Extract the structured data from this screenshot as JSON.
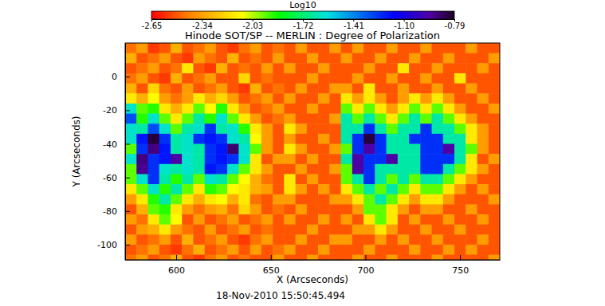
{
  "chart_data": {
    "type": "heatmap",
    "title": "Hinode SOT/SP -- MERLIN : Degree of Polarization",
    "annotation": "18-Nov-2010 15:50:45.494",
    "x_label": "X (Arcseconds)",
    "y_label": "Y (Arcseconds)",
    "xlim": [
      573,
      771
    ],
    "ylim": [
      -109,
      20
    ],
    "xticks": [
      600,
      650,
      700,
      750
    ],
    "yticks": [
      -100,
      -80,
      -60,
      -40,
      -20,
      0
    ],
    "colorbar": {
      "label": "Log10",
      "range": [
        -2.65,
        -0.79
      ],
      "ticks": [
        -2.65,
        -2.34,
        -2.03,
        -1.72,
        -1.41,
        {
          "value": -1.1,
          "label": "-1.10"
        },
        -0.79
      ]
    },
    "x": [
      576,
      582,
      588,
      594,
      600,
      606,
      612,
      618,
      624,
      630,
      636,
      642,
      648,
      654,
      660,
      666,
      672,
      678,
      684,
      690,
      696,
      702,
      708,
      714,
      720,
      726,
      732,
      738,
      744,
      750,
      756,
      762,
      768
    ],
    "y": [
      17,
      11,
      5,
      -1,
      -7,
      -13,
      -19,
      -25,
      -31,
      -37,
      -43,
      -49,
      -55,
      -61,
      -67,
      -73,
      -79,
      -85,
      -91,
      -97,
      -103,
      -109
    ],
    "values": [
      [
        -2.45,
        -2.35,
        -2.55,
        -2.5,
        -2.3,
        -2.5,
        -2.45,
        -2.35,
        -2.5,
        -2.55,
        -2.45,
        -2.35,
        -2.5,
        -2.45,
        -2.5,
        -2.35,
        -2.5,
        -2.5,
        -2.35,
        -2.5,
        -2.35,
        -2.5,
        -2.5,
        -2.35,
        -2.5,
        -2.5,
        -2.35,
        -2.5,
        -2.5,
        -2.5,
        -2.35,
        -2.5,
        -2.5
      ],
      [
        -2.3,
        -2.5,
        -2.45,
        -2.35,
        -2.5,
        -2.55,
        -2.35,
        -2.45,
        -2.5,
        -2.3,
        -2.5,
        -2.45,
        -2.5,
        -2.35,
        -2.5,
        -2.5,
        -2.35,
        -2.5,
        -2.5,
        -2.35,
        -2.5,
        -2.5,
        -2.35,
        -2.5,
        -2.5,
        -2.35,
        -2.5,
        -2.5,
        -2.35,
        -2.5,
        -2.5,
        -2.5,
        -2.35
      ],
      [
        -2.5,
        -2.45,
        -2.35,
        -2.5,
        -2.45,
        -2.15,
        -2.5,
        -2.55,
        -2.3,
        -2.5,
        -2.45,
        -2.5,
        -2.35,
        -2.5,
        -2.35,
        -2.5,
        -2.5,
        -2.35,
        -2.5,
        -2.5,
        -2.5,
        -2.35,
        -2.5,
        -2.5,
        -2.15,
        -2.5,
        -2.5,
        -2.35,
        -2.5,
        -2.5,
        -2.5,
        -2.35,
        -2.5
      ],
      [
        -2.45,
        -2.35,
        -2.5,
        -2.55,
        -2.3,
        -2.5,
        -2.45,
        -2.35,
        -2.5,
        -2.5,
        -2.2,
        -2.5,
        -2.45,
        -2.5,
        -2.5,
        -2.5,
        -2.35,
        -2.5,
        -2.5,
        -2.5,
        -2.35,
        -2.5,
        -2.5,
        -2.35,
        -2.5,
        -2.5,
        -2.35,
        -2.5,
        -2.5,
        -2.15,
        -2.5,
        -2.5,
        -2.5
      ],
      [
        -2.3,
        -2.5,
        -2.2,
        -2.45,
        -2.5,
        -2.35,
        -2.5,
        -2.45,
        -2.35,
        -2.5,
        -2.55,
        -2.3,
        -2.5,
        -2.45,
        -2.5,
        -2.35,
        -2.5,
        -2.5,
        -2.35,
        -2.35,
        -2.5,
        -2.15,
        -2.5,
        -2.5,
        -2.35,
        -2.5,
        -2.5,
        -2.35,
        -2.5,
        -2.5,
        -2.35,
        -2.5,
        -2.5
      ],
      [
        -2.15,
        -2.3,
        -2.1,
        -2.35,
        -2.45,
        -2.35,
        -2.15,
        -2.3,
        -2.2,
        -2.35,
        -2.5,
        -2.45,
        -2.35,
        -2.5,
        -2.35,
        -2.5,
        -2.5,
        -2.35,
        -2.5,
        -2.15,
        -2.35,
        -2.15,
        -2.35,
        -2.5,
        -2.35,
        -2.15,
        -2.35,
        -2.15,
        -2.35,
        -2.5,
        -2.5,
        -2.35,
        -2.5
      ],
      [
        -1.6,
        -1.95,
        -1.9,
        -2.15,
        -2.3,
        -2.15,
        -1.95,
        -2.1,
        -1.9,
        -2.15,
        -2.35,
        -2.5,
        -2.45,
        -2.35,
        -2.5,
        -2.5,
        -2.35,
        -2.5,
        -2.5,
        -1.95,
        -2.15,
        -1.95,
        -2.15,
        -2.35,
        -2.15,
        -1.95,
        -2.15,
        -1.95,
        -2.15,
        -2.35,
        -2.5,
        -2.5,
        -2.35
      ],
      [
        -1.3,
        -1.9,
        -1.6,
        -1.95,
        -2.15,
        -1.95,
        -1.65,
        -1.9,
        -1.6,
        -1.95,
        -2.15,
        -2.35,
        -2.5,
        -2.45,
        -2.35,
        -2.5,
        -2.5,
        -2.5,
        -2.35,
        -1.65,
        -1.95,
        -1.65,
        -1.95,
        -2.15,
        -1.95,
        -1.65,
        -1.95,
        -1.65,
        -1.95,
        -2.15,
        -2.35,
        -2.5,
        -2.5
      ],
      [
        -1.6,
        -1.65,
        -1.3,
        -1.6,
        -1.95,
        -1.65,
        -1.6,
        -1.25,
        -1.65,
        -1.6,
        -1.9,
        -2.15,
        -2.35,
        -2.5,
        -2.15,
        -2.35,
        -2.5,
        -2.5,
        -2.5,
        -1.65,
        -1.65,
        -1.25,
        -1.65,
        -1.95,
        -1.65,
        -1.65,
        -1.25,
        -1.65,
        -1.65,
        -1.95,
        -2.15,
        -2.35,
        -2.5
      ],
      [
        -1.6,
        -1.2,
        -0.82,
        -1.25,
        -1.65,
        -1.6,
        -1.25,
        -1.2,
        -1.25,
        -1.6,
        -1.65,
        -2.1,
        -2.35,
        -2.5,
        -2.35,
        -2.5,
        -2.5,
        -2.35,
        -2.5,
        -1.65,
        -1.25,
        -0.82,
        -1.25,
        -1.65,
        -1.65,
        -1.25,
        -1.25,
        -1.25,
        -1.65,
        -1.65,
        -2.15,
        -2.35,
        -2.5
      ],
      [
        -1.95,
        -1.25,
        -0.9,
        -1.2,
        -1.65,
        -1.6,
        -1.65,
        -1.25,
        -1.2,
        -0.88,
        -1.6,
        -1.95,
        -2.35,
        -2.5,
        -2.15,
        -2.35,
        -2.5,
        -2.5,
        -2.35,
        -1.95,
        -1.25,
        -0.95,
        -1.25,
        -1.65,
        -1.65,
        -1.65,
        -1.25,
        -1.25,
        -0.95,
        -1.65,
        -1.95,
        -2.35,
        -2.5
      ],
      [
        -1.6,
        -0.9,
        -1.25,
        -1.2,
        -0.95,
        -1.6,
        -1.65,
        -1.25,
        -1.2,
        -1.25,
        -1.6,
        -2.15,
        -2.5,
        -2.35,
        -2.35,
        -2.5,
        -2.35,
        -2.5,
        -2.5,
        -1.65,
        -0.95,
        -1.25,
        -1.25,
        -0.95,
        -1.65,
        -1.65,
        -1.25,
        -1.25,
        -1.25,
        -1.65,
        -2.15,
        -2.5,
        -2.35
      ],
      [
        -1.95,
        -0.92,
        -1.25,
        -1.6,
        -1.65,
        -1.6,
        -1.65,
        -1.2,
        -1.25,
        -1.6,
        -1.95,
        -2.15,
        -2.35,
        -2.5,
        -2.5,
        -2.35,
        -2.5,
        -2.5,
        -2.35,
        -1.95,
        -0.95,
        -1.25,
        -1.65,
        -1.65,
        -1.65,
        -1.65,
        -1.25,
        -1.25,
        -1.65,
        -1.95,
        -2.15,
        -2.35,
        -2.5
      ],
      [
        -1.95,
        -1.6,
        -1.25,
        -1.65,
        -1.9,
        -1.65,
        -1.95,
        -1.6,
        -1.65,
        -1.95,
        -2.1,
        -2.3,
        -2.45,
        -2.5,
        -2.15,
        -2.5,
        -2.35,
        -2.5,
        -2.5,
        -1.95,
        -1.65,
        -1.25,
        -1.65,
        -1.95,
        -1.65,
        -1.95,
        -1.65,
        -1.65,
        -1.95,
        -2.15,
        -2.35,
        -2.5,
        -2.5
      ],
      [
        -2.15,
        -1.95,
        -1.6,
        -1.9,
        -1.65,
        -1.95,
        -2.15,
        -1.9,
        -1.95,
        -2.1,
        -2.15,
        -2.3,
        -2.35,
        -2.5,
        -2.15,
        -2.35,
        -2.5,
        -2.35,
        -2.5,
        -2.15,
        -1.95,
        -1.65,
        -1.95,
        -1.65,
        -1.95,
        -2.15,
        -1.95,
        -1.95,
        -2.15,
        -2.35,
        -2.5,
        -2.35,
        -2.5
      ],
      [
        -2.35,
        -2.15,
        -1.9,
        -1.65,
        -1.95,
        -2.15,
        -2.3,
        -2.15,
        -2.1,
        -2.3,
        -2.15,
        -2.45,
        -2.5,
        -2.35,
        -2.35,
        -2.5,
        -2.5,
        -2.5,
        -2.35,
        -2.35,
        -2.15,
        -1.95,
        -1.65,
        -1.95,
        -2.15,
        -2.35,
        -2.15,
        -2.15,
        -2.35,
        -2.5,
        -2.5,
        -2.5,
        -2.35
      ],
      [
        -2.5,
        -2.3,
        -1.95,
        -1.9,
        -2.15,
        -2.35,
        -2.45,
        -2.35,
        -2.3,
        -2.45,
        -2.2,
        -2.35,
        -2.5,
        -2.45,
        -2.5,
        -2.35,
        -2.5,
        -2.5,
        -2.5,
        -2.5,
        -2.35,
        -1.95,
        -1.95,
        -2.15,
        -2.35,
        -2.5,
        -2.35,
        -2.35,
        -2.5,
        -2.5,
        -2.35,
        -2.5,
        -2.5
      ],
      [
        -2.35,
        -2.45,
        -2.15,
        -1.95,
        -2.1,
        -2.5,
        -2.35,
        -2.5,
        -2.45,
        -2.35,
        -2.5,
        -2.45,
        -2.35,
        -2.5,
        -2.35,
        -2.5,
        -2.5,
        -2.35,
        -2.5,
        -2.35,
        -2.5,
        -2.15,
        -1.95,
        -2.15,
        -2.5,
        -2.35,
        -2.5,
        -2.5,
        -2.35,
        -2.5,
        -2.5,
        -2.35,
        -2.5
      ],
      [
        -2.5,
        -2.35,
        -2.3,
        -2.15,
        -2.35,
        -2.45,
        -2.5,
        -2.35,
        -2.5,
        -2.45,
        -2.35,
        -2.5,
        -2.45,
        -2.5,
        -2.5,
        -2.5,
        -2.35,
        -2.5,
        -2.5,
        -2.5,
        -2.35,
        -2.35,
        -2.15,
        -2.35,
        -2.5,
        -2.5,
        -2.35,
        -2.5,
        -2.5,
        -2.35,
        -2.5,
        -2.5,
        -2.5
      ],
      [
        -2.35,
        -2.5,
        -2.45,
        -2.35,
        -2.5,
        -2.3,
        -2.5,
        -2.45,
        -2.35,
        -2.5,
        -2.55,
        -2.45,
        -2.35,
        -2.5,
        -2.5,
        -2.35,
        -2.5,
        -2.5,
        -2.35,
        -2.35,
        -2.5,
        -2.5,
        -2.35,
        -2.5,
        -2.35,
        -2.5,
        -2.5,
        -2.35,
        -2.5,
        -2.5,
        -2.5,
        -2.35,
        -2.5
      ],
      [
        -2.5,
        -2.45,
        -2.35,
        -2.5,
        -2.55,
        -2.45,
        -2.3,
        -2.5,
        -2.45,
        -2.35,
        -2.5,
        -2.35,
        -2.5,
        -2.45,
        -2.35,
        -2.5,
        -2.5,
        -2.35,
        -2.5,
        -2.5,
        -2.5,
        -2.35,
        -2.5,
        -2.5,
        -2.5,
        -2.35,
        -2.5,
        -2.5,
        -2.35,
        -2.5,
        -2.35,
        -2.5,
        -2.5
      ],
      [
        -2.45,
        -2.35,
        -2.5,
        -2.45,
        -2.3,
        -2.5,
        -2.55,
        -2.45,
        -2.35,
        -2.5,
        -2.45,
        -2.5,
        -2.5,
        -2.35,
        -2.5,
        -2.5,
        -2.35,
        -2.5,
        -2.5,
        -2.5,
        -2.35,
        -2.5,
        -2.5,
        -2.35,
        -2.5,
        -2.5,
        -2.5,
        -2.35,
        -2.5,
        -2.5,
        -2.5,
        -2.5,
        -2.35
      ]
    ]
  }
}
